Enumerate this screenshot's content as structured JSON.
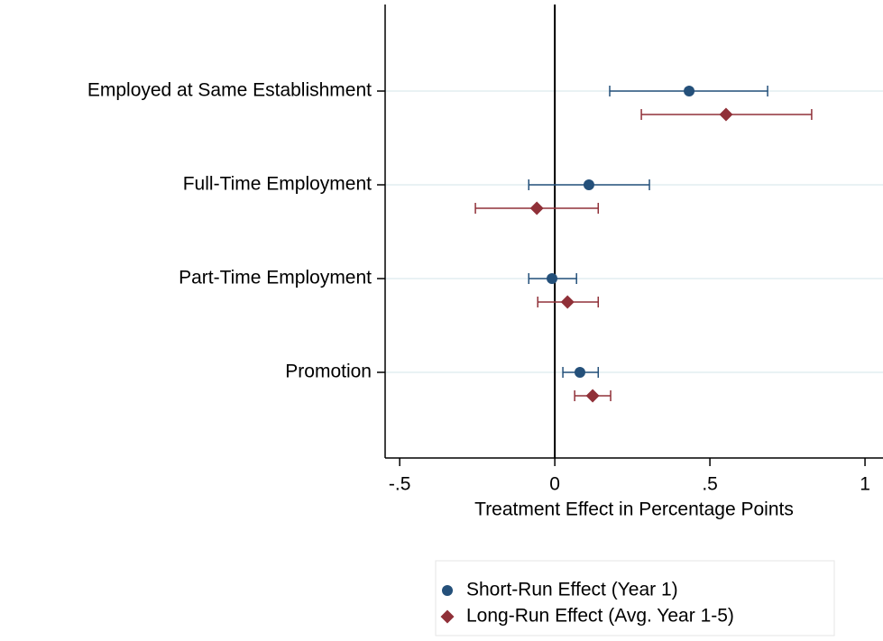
{
  "chart_data": {
    "type": "coefplot",
    "x_label": "Treatment Effect in Percentage Points",
    "categories": [
      "Employed at Same Establishment",
      "Full-Time Employment",
      "Part-Time Employment",
      "Promotion"
    ],
    "series": [
      {
        "name": "Short-Run Effect (Year 1)",
        "color": "#24507a",
        "marker": "circle",
        "values": [
          0.433,
          0.11,
          -0.009,
          0.081
        ],
        "lower": [
          0.177,
          -0.084,
          -0.084,
          0.026
        ],
        "upper": [
          0.686,
          0.305,
          0.07,
          0.14
        ]
      },
      {
        "name": "Long-Run Effect (Avg. Year 1-5)",
        "color": "#903038",
        "marker": "diamond",
        "values": [
          0.552,
          -0.058,
          0.041,
          0.122
        ],
        "lower": [
          0.279,
          -0.256,
          -0.055,
          0.064
        ],
        "upper": [
          0.828,
          0.14,
          0.14,
          0.18
        ]
      }
    ],
    "xlim": [
      -0.547,
      1.058
    ],
    "xticks": [
      {
        "value": -0.5,
        "label": "-.5"
      },
      0,
      {
        "value": 0.5,
        "label": ".5"
      },
      1
    ],
    "grid": true,
    "zero_line": true
  }
}
